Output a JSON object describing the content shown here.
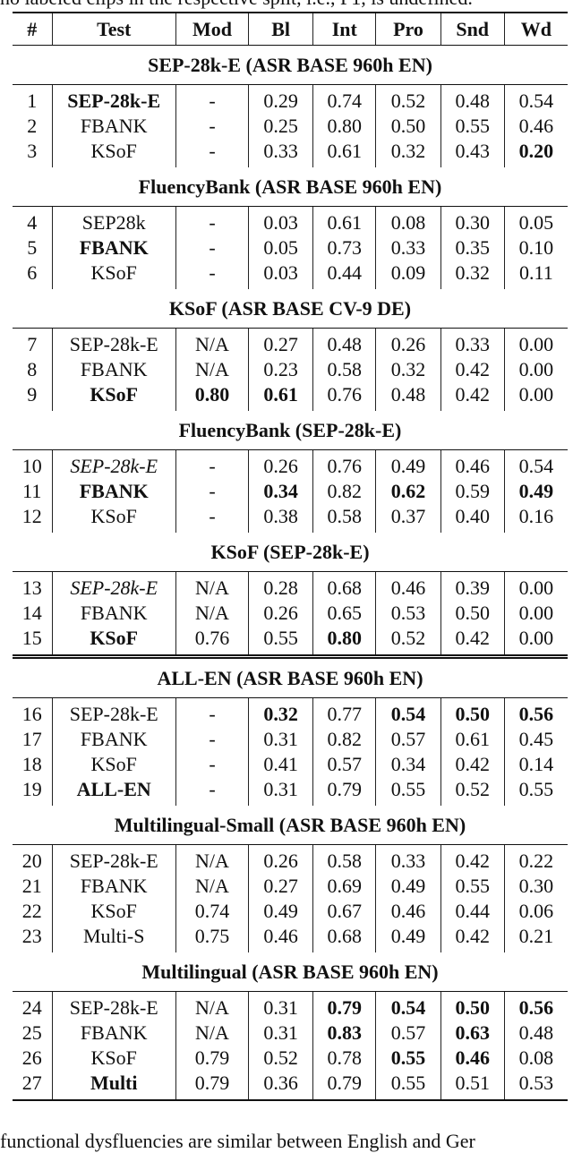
{
  "caption_fragment": "no labeled clips in the respective split, i.e., F1, is undefined.",
  "headers": [
    "#",
    "Test",
    "Mod",
    "Bl",
    "Int",
    "Pro",
    "Snd",
    "Wd"
  ],
  "sections": [
    {
      "title": "SEP-28k-E (ASR BASE 960h EN)",
      "rows": [
        {
          "cells": [
            "1",
            "SEP-28k-E",
            "-",
            "0.29",
            "0.74",
            "0.52",
            "0.48",
            "0.54"
          ],
          "bold": [
            1
          ]
        },
        {
          "cells": [
            "2",
            "FBANK",
            "-",
            "0.25",
            "0.80",
            "0.50",
            "0.55",
            "0.46"
          ],
          "bold": []
        },
        {
          "cells": [
            "3",
            "KSoF",
            "-",
            "0.33",
            "0.61",
            "0.32",
            "0.43",
            "0.20"
          ],
          "bold": [
            7
          ]
        }
      ]
    },
    {
      "title": "FluencyBank (ASR BASE 960h EN)",
      "rows": [
        {
          "cells": [
            "4",
            "SEP28k",
            "-",
            "0.03",
            "0.61",
            "0.08",
            "0.30",
            "0.05"
          ],
          "bold": []
        },
        {
          "cells": [
            "5",
            "FBANK",
            "-",
            "0.05",
            "0.73",
            "0.33",
            "0.35",
            "0.10"
          ],
          "bold": [
            1
          ]
        },
        {
          "cells": [
            "6",
            "KSoF",
            "-",
            "0.03",
            "0.44",
            "0.09",
            "0.32",
            "0.11"
          ],
          "bold": []
        }
      ]
    },
    {
      "title": "KSoF (ASR BASE CV-9 DE)",
      "rows": [
        {
          "cells": [
            "7",
            "SEP-28k-E",
            "N/A",
            "0.27",
            "0.48",
            "0.26",
            "0.33",
            "0.00"
          ],
          "bold": []
        },
        {
          "cells": [
            "8",
            "FBANK",
            "N/A",
            "0.23",
            "0.58",
            "0.32",
            "0.42",
            "0.00"
          ],
          "bold": []
        },
        {
          "cells": [
            "9",
            "KSoF",
            "0.80",
            "0.61",
            "0.76",
            "0.48",
            "0.42",
            "0.00"
          ],
          "bold": [
            1,
            2,
            3
          ]
        }
      ]
    },
    {
      "title": "FluencyBank (SEP-28k-E)",
      "rows": [
        {
          "cells": [
            "10",
            "SEP-28k-E",
            "-",
            "0.26",
            "0.76",
            "0.49",
            "0.46",
            "0.54"
          ],
          "bold": [],
          "italic": [
            1
          ]
        },
        {
          "cells": [
            "11",
            "FBANK",
            "-",
            "0.34",
            "0.82",
            "0.62",
            "0.59",
            "0.49"
          ],
          "bold": [
            1,
            3,
            5,
            7
          ]
        },
        {
          "cells": [
            "12",
            "KSoF",
            "-",
            "0.38",
            "0.58",
            "0.37",
            "0.40",
            "0.16"
          ],
          "bold": []
        }
      ]
    },
    {
      "title": "KSoF (SEP-28k-E)",
      "double_rule_after": true,
      "rows": [
        {
          "cells": [
            "13",
            "SEP-28k-E",
            "N/A",
            "0.28",
            "0.68",
            "0.46",
            "0.39",
            "0.00"
          ],
          "bold": [],
          "italic": [
            1
          ]
        },
        {
          "cells": [
            "14",
            "FBANK",
            "N/A",
            "0.26",
            "0.65",
            "0.53",
            "0.50",
            "0.00"
          ],
          "bold": []
        },
        {
          "cells": [
            "15",
            "KSoF",
            "0.76",
            "0.55",
            "0.80",
            "0.52",
            "0.42",
            "0.00"
          ],
          "bold": [
            1,
            4
          ]
        }
      ]
    },
    {
      "title": "ALL-EN (ASR BASE 960h EN)",
      "rows": [
        {
          "cells": [
            "16",
            "SEP-28k-E",
            "-",
            "0.32",
            "0.77",
            "0.54",
            "0.50",
            "0.56"
          ],
          "bold": [
            3,
            5,
            6,
            7
          ]
        },
        {
          "cells": [
            "17",
            "FBANK",
            "-",
            "0.31",
            "0.82",
            "0.57",
            "0.61",
            "0.45"
          ],
          "bold": []
        },
        {
          "cells": [
            "18",
            "KSoF",
            "-",
            "0.41",
            "0.57",
            "0.34",
            "0.42",
            "0.14"
          ],
          "bold": []
        },
        {
          "cells": [
            "19",
            "ALL-EN",
            "-",
            "0.31",
            "0.79",
            "0.55",
            "0.52",
            "0.55"
          ],
          "bold": [
            1
          ]
        }
      ]
    },
    {
      "title": "Multilingual-Small (ASR BASE 960h EN)",
      "rows": [
        {
          "cells": [
            "20",
            "SEP-28k-E",
            "N/A",
            "0.26",
            "0.58",
            "0.33",
            "0.42",
            "0.22"
          ],
          "bold": []
        },
        {
          "cells": [
            "21",
            "FBANK",
            "N/A",
            "0.27",
            "0.69",
            "0.49",
            "0.55",
            "0.30"
          ],
          "bold": []
        },
        {
          "cells": [
            "22",
            "KSoF",
            "0.74",
            "0.49",
            "0.67",
            "0.46",
            "0.44",
            "0.06"
          ],
          "bold": []
        },
        {
          "cells": [
            "23",
            "Multi-S",
            "0.75",
            "0.46",
            "0.68",
            "0.49",
            "0.42",
            "0.21"
          ],
          "bold": []
        }
      ]
    },
    {
      "title": "Multilingual (ASR BASE 960h EN)",
      "rows": [
        {
          "cells": [
            "24",
            "SEP-28k-E",
            "N/A",
            "0.31",
            "0.79",
            "0.54",
            "0.50",
            "0.56"
          ],
          "bold": [
            4,
            5,
            6,
            7
          ]
        },
        {
          "cells": [
            "25",
            "FBANK",
            "N/A",
            "0.31",
            "0.83",
            "0.57",
            "0.63",
            "0.48"
          ],
          "bold": [
            4,
            6
          ]
        },
        {
          "cells": [
            "26",
            "KSoF",
            "0.79",
            "0.52",
            "0.78",
            "0.55",
            "0.46",
            "0.08"
          ],
          "bold": [
            5,
            6
          ]
        },
        {
          "cells": [
            "27",
            "Multi",
            "0.79",
            "0.36",
            "0.79",
            "0.55",
            "0.51",
            "0.53"
          ],
          "bold": [
            1
          ]
        }
      ]
    }
  ],
  "body_fragment": "functional dysfluencies are similar between English and Ger"
}
